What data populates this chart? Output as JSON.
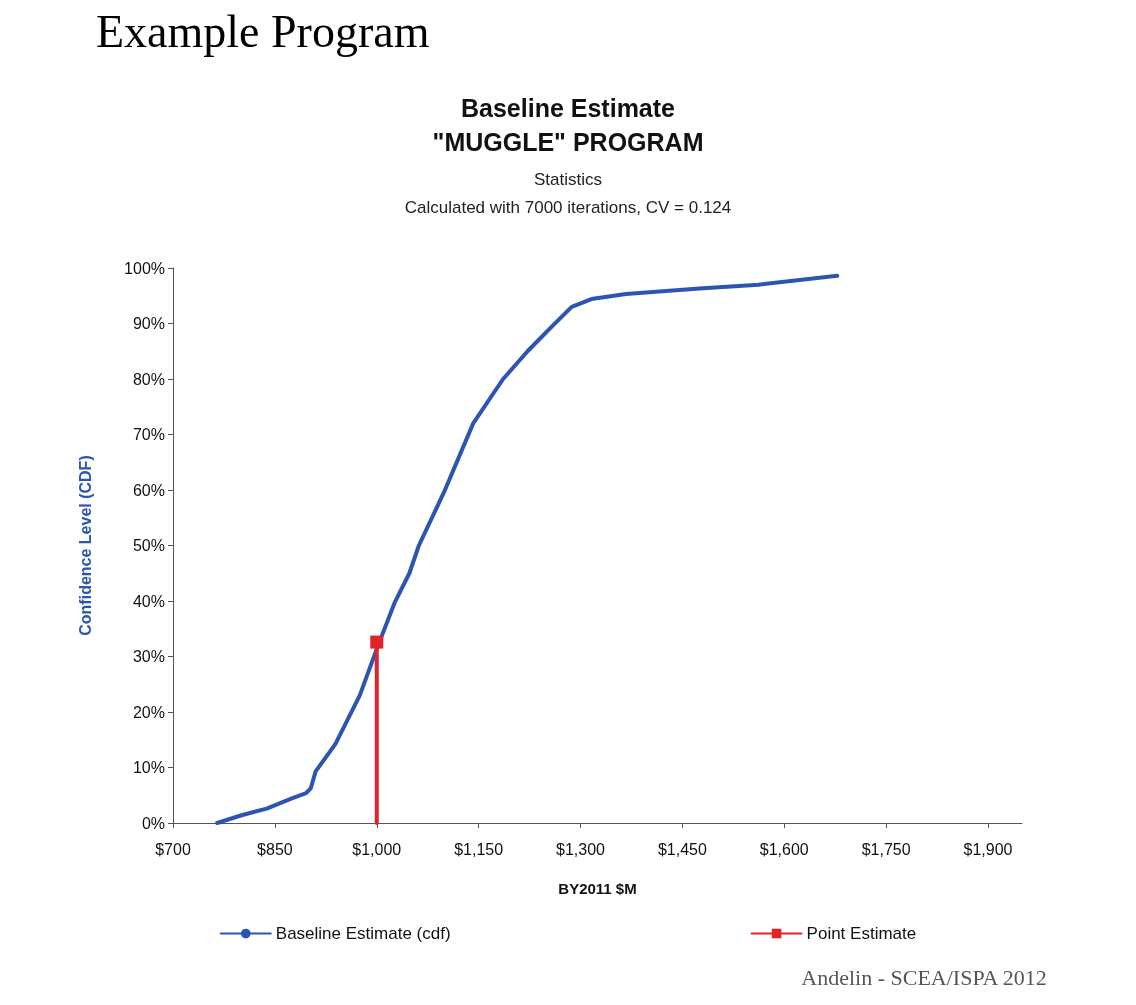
{
  "chart_data": {
    "type": "line",
    "title": "Baseline Estimate\n\"MUGGLE\" PROGRAM",
    "subtitle": "Statistics\nCalculated with 7000 iterations, CV = 0.124",
    "xlabel": "BY2011 $M",
    "ylabel": "Confidence Level (CDF)",
    "annotations": [
      "Example Program",
      "Andelin - SCEA/ISPA 2012"
    ],
    "series": [
      {
        "name": "Baseline Estimate (cdf)",
        "color": "#2b55b0",
        "marker": "none",
        "x": [
          765,
          801,
          838,
          874,
          896,
          903,
          910,
          939,
          975,
          1001,
          1026,
          1048,
          1062,
          1099,
          1142,
          1186,
          1222,
          1258,
          1287,
          1316,
          1367,
          1475,
          1562,
          1678
        ],
        "values": [
          0,
          1.4,
          2.6,
          4.4,
          5.4,
          6.3,
          9.3,
          14.2,
          23,
          31.7,
          39.6,
          45,
          50,
          59.6,
          72,
          80,
          85,
          89.5,
          93,
          94.4,
          95.3,
          96.3,
          97,
          98.6
        ]
      },
      {
        "name": "Point Estimate",
        "color": "#e0242c",
        "marker": "square",
        "x": [
          1000,
          1000
        ],
        "values": [
          0,
          32.6
        ]
      }
    ],
    "xlim": [
      700,
      1950
    ],
    "xticks": [
      {
        "value": 700,
        "label": "$700"
      },
      {
        "value": 850,
        "label": "$850"
      },
      {
        "value": 1000,
        "label": "$1,000"
      },
      {
        "value": 1150,
        "label": "$1,150"
      },
      {
        "value": 1300,
        "label": "$1,300"
      },
      {
        "value": 1450,
        "label": "$1,450"
      },
      {
        "value": 1600,
        "label": "$1,600"
      },
      {
        "value": 1750,
        "label": "$1,750"
      },
      {
        "value": 1900,
        "label": "$1,900"
      }
    ],
    "ylim": [
      0,
      100
    ],
    "yticks": [
      {
        "value": 0,
        "label": "0%"
      },
      {
        "value": 10,
        "label": "10%"
      },
      {
        "value": 20,
        "label": "20%"
      },
      {
        "value": 30,
        "label": "30%"
      },
      {
        "value": 40,
        "label": "40%"
      },
      {
        "value": 50,
        "label": "50%"
      },
      {
        "value": 60,
        "label": "60%"
      },
      {
        "value": 70,
        "label": "70%"
      },
      {
        "value": 80,
        "label": "80%"
      },
      {
        "value": 90,
        "label": "90%"
      },
      {
        "value": 100,
        "label": "100%"
      }
    ],
    "grid": false,
    "legend": "bottom"
  }
}
